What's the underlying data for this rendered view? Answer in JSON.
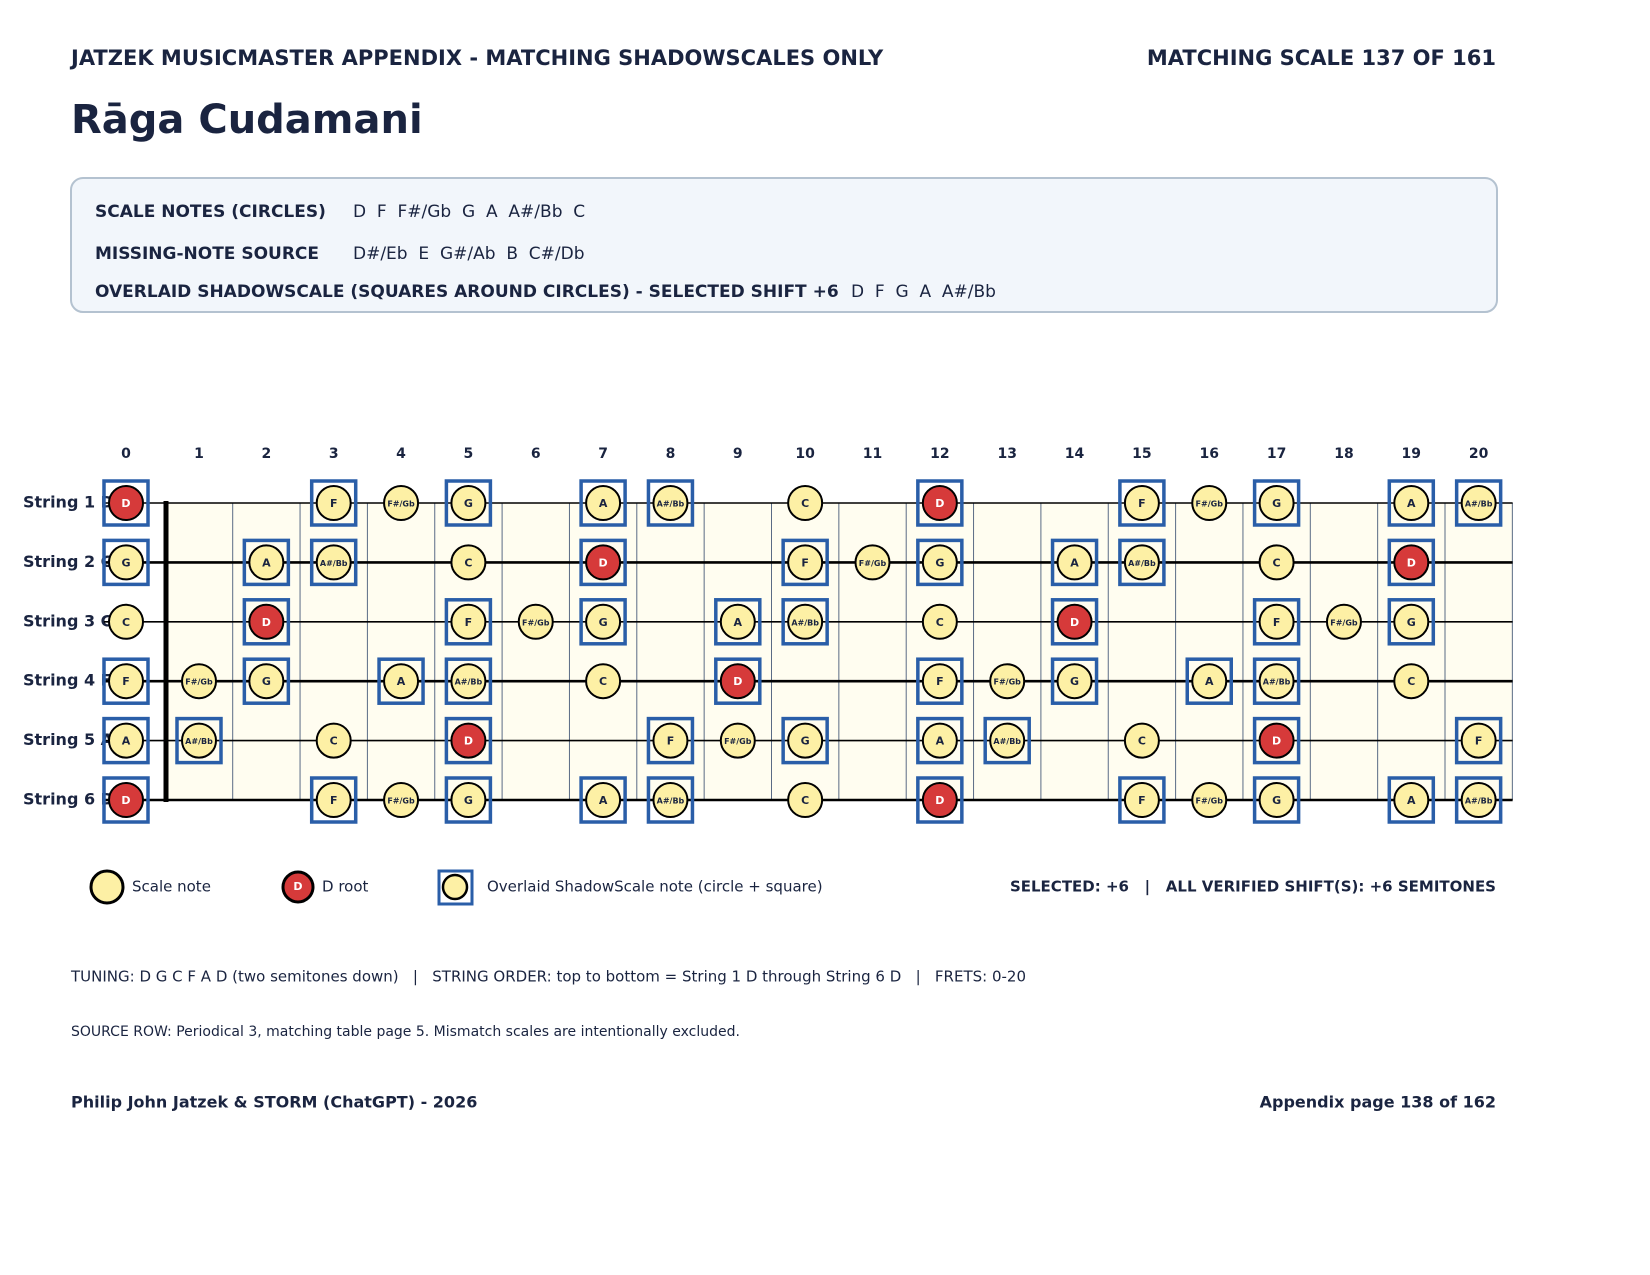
{
  "header": {
    "title": "JATZEK MUSICMASTER APPENDIX - MATCHING SHADOWSCALES ONLY",
    "counter": "MATCHING SCALE 137 OF 161"
  },
  "scale_name": "Rāga Cudamani",
  "info": [
    {
      "label": "SCALE NOTES (CIRCLES)",
      "value": "D  F  F#/Gb  G  A  A#/Bb  C"
    },
    {
      "label": "MISSING-NOTE SOURCE",
      "value": "D#/Eb  E  G#/Ab  B  C#/Db"
    },
    {
      "label": "OVERLAID SHADOWSCALE (SQUARES AROUND CIRCLES) - SELECTED SHIFT +6",
      "value": "D  F  G  A  A#/Bb"
    }
  ],
  "fretboard": {
    "frets": [
      0,
      1,
      2,
      3,
      4,
      5,
      6,
      7,
      8,
      9,
      10,
      11,
      12,
      13,
      14,
      15,
      16,
      17,
      18,
      19,
      20
    ],
    "root": "D",
    "strings": [
      {
        "label": "String 1 D",
        "notes": [
          {
            "note": "D",
            "square": true
          },
          null,
          null,
          {
            "note": "F",
            "square": true
          },
          {
            "note": "F#/Gb",
            "square": false
          },
          {
            "note": "G",
            "square": true
          },
          null,
          {
            "note": "A",
            "square": true
          },
          {
            "note": "A#/Bb",
            "square": true
          },
          null,
          {
            "note": "C",
            "square": false
          },
          null,
          {
            "note": "D",
            "square": true
          },
          null,
          null,
          {
            "note": "F",
            "square": true
          },
          {
            "note": "F#/Gb",
            "square": false
          },
          {
            "note": "G",
            "square": true
          },
          null,
          {
            "note": "A",
            "square": true
          },
          {
            "note": "A#/Bb",
            "square": true
          }
        ]
      },
      {
        "label": "String 2 G",
        "notes": [
          {
            "note": "G",
            "square": true
          },
          null,
          {
            "note": "A",
            "square": true
          },
          {
            "note": "A#/Bb",
            "square": true
          },
          null,
          {
            "note": "C",
            "square": false
          },
          null,
          {
            "note": "D",
            "square": true
          },
          null,
          null,
          {
            "note": "F",
            "square": true
          },
          {
            "note": "F#/Gb",
            "square": false
          },
          {
            "note": "G",
            "square": true
          },
          null,
          {
            "note": "A",
            "square": true
          },
          {
            "note": "A#/Bb",
            "square": true
          },
          null,
          {
            "note": "C",
            "square": false
          },
          null,
          {
            "note": "D",
            "square": true
          },
          null
        ]
      },
      {
        "label": "String 3 C",
        "notes": [
          {
            "note": "C",
            "square": false
          },
          null,
          {
            "note": "D",
            "square": true
          },
          null,
          null,
          {
            "note": "F",
            "square": true
          },
          {
            "note": "F#/Gb",
            "square": false
          },
          {
            "note": "G",
            "square": true
          },
          null,
          {
            "note": "A",
            "square": true
          },
          {
            "note": "A#/Bb",
            "square": true
          },
          null,
          {
            "note": "C",
            "square": false
          },
          null,
          {
            "note": "D",
            "square": true
          },
          null,
          null,
          {
            "note": "F",
            "square": true
          },
          {
            "note": "F#/Gb",
            "square": false
          },
          {
            "note": "G",
            "square": true
          },
          null
        ]
      },
      {
        "label": "String 4 F",
        "notes": [
          {
            "note": "F",
            "square": true
          },
          {
            "note": "F#/Gb",
            "square": false
          },
          {
            "note": "G",
            "square": true
          },
          null,
          {
            "note": "A",
            "square": true
          },
          {
            "note": "A#/Bb",
            "square": true
          },
          null,
          {
            "note": "C",
            "square": false
          },
          null,
          {
            "note": "D",
            "square": true
          },
          null,
          null,
          {
            "note": "F",
            "square": true
          },
          {
            "note": "F#/Gb",
            "square": false
          },
          {
            "note": "G",
            "square": true
          },
          null,
          {
            "note": "A",
            "square": true
          },
          {
            "note": "A#/Bb",
            "square": true
          },
          null,
          {
            "note": "C",
            "square": false
          },
          null
        ]
      },
      {
        "label": "String 5 A",
        "notes": [
          {
            "note": "A",
            "square": true
          },
          {
            "note": "A#/Bb",
            "square": true
          },
          null,
          {
            "note": "C",
            "square": false
          },
          null,
          {
            "note": "D",
            "square": true
          },
          null,
          null,
          {
            "note": "F",
            "square": true
          },
          {
            "note": "F#/Gb",
            "square": false
          },
          {
            "note": "G",
            "square": true
          },
          null,
          {
            "note": "A",
            "square": true
          },
          {
            "note": "A#/Bb",
            "square": true
          },
          null,
          {
            "note": "C",
            "square": false
          },
          null,
          {
            "note": "D",
            "square": true
          },
          null,
          null,
          {
            "note": "F",
            "square": true
          }
        ]
      },
      {
        "label": "String 6 D",
        "notes": [
          {
            "note": "D",
            "square": true
          },
          null,
          null,
          {
            "note": "F",
            "square": true
          },
          {
            "note": "F#/Gb",
            "square": false
          },
          {
            "note": "G",
            "square": true
          },
          null,
          {
            "note": "A",
            "square": true
          },
          {
            "note": "A#/Bb",
            "square": true
          },
          null,
          {
            "note": "C",
            "square": false
          },
          null,
          {
            "note": "D",
            "square": true
          },
          null,
          null,
          {
            "note": "F",
            "square": true
          },
          {
            "note": "F#/Gb",
            "square": false
          },
          {
            "note": "G",
            "square": true
          },
          null,
          {
            "note": "A",
            "square": true
          },
          {
            "note": "A#/Bb",
            "square": true
          }
        ]
      }
    ]
  },
  "legend": {
    "scale_note": "Scale note",
    "root": "D root",
    "shadow": "Overlaid ShadowScale note (circle + square)"
  },
  "status": "SELECTED: +6   |   ALL VERIFIED SHIFT(S): +6 SEMITONES",
  "notes": [
    "TUNING: D G C F A D (two semitones down)   |   STRING ORDER: top to bottom = String 1 D through String 6 D   |   FRETS: 0-20",
    "SOURCE ROW: Periodical 3, matching table page 5. Mismatch scales are intentionally excluded."
  ],
  "footer": {
    "left": "Philip John Jatzek & STORM (ChatGPT) - 2026",
    "right": "Appendix page 138 of 162"
  }
}
